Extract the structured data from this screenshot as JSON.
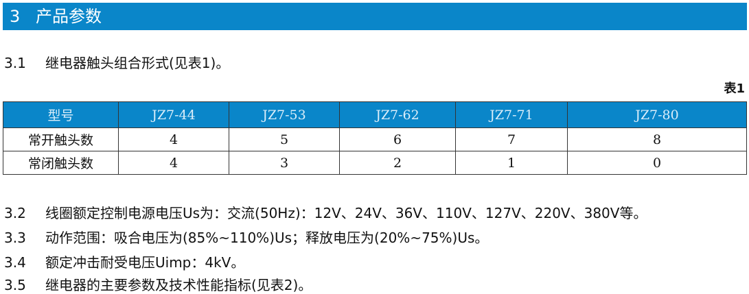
{
  "section": {
    "number": "3",
    "title": "产品参数"
  },
  "items": [
    {
      "number": "3.1",
      "text": "继电器触头组合形式(见表1)。"
    },
    {
      "number": "3.2",
      "text": "线圈额定控制电源电压Us为：交流(50Hz)：12V、24V、36V、110V、127V、220V、380V等。"
    },
    {
      "number": "3.3",
      "text": "动作范围：吸合电压为(85%~110%)Us；释放电压为(20%~75%)Us。"
    },
    {
      "number": "3.4",
      "text": "额定冲击耐受电压Uimp：4kV。"
    },
    {
      "number": "3.5",
      "text": "继电器的主要参数及技术性能指标(见表2)。"
    }
  ],
  "table": {
    "caption": "表1",
    "header": [
      "型号",
      "JZ7-44",
      "JZ7-53",
      "JZ7-62",
      "JZ7-71",
      "JZ7-80"
    ],
    "rows": [
      [
        "常开触头数",
        "4",
        "5",
        "6",
        "7",
        "8"
      ],
      [
        "常闭触头数",
        "4",
        "3",
        "2",
        "1",
        "0"
      ]
    ]
  },
  "colors": {
    "header_bg": "#0a86c9"
  }
}
